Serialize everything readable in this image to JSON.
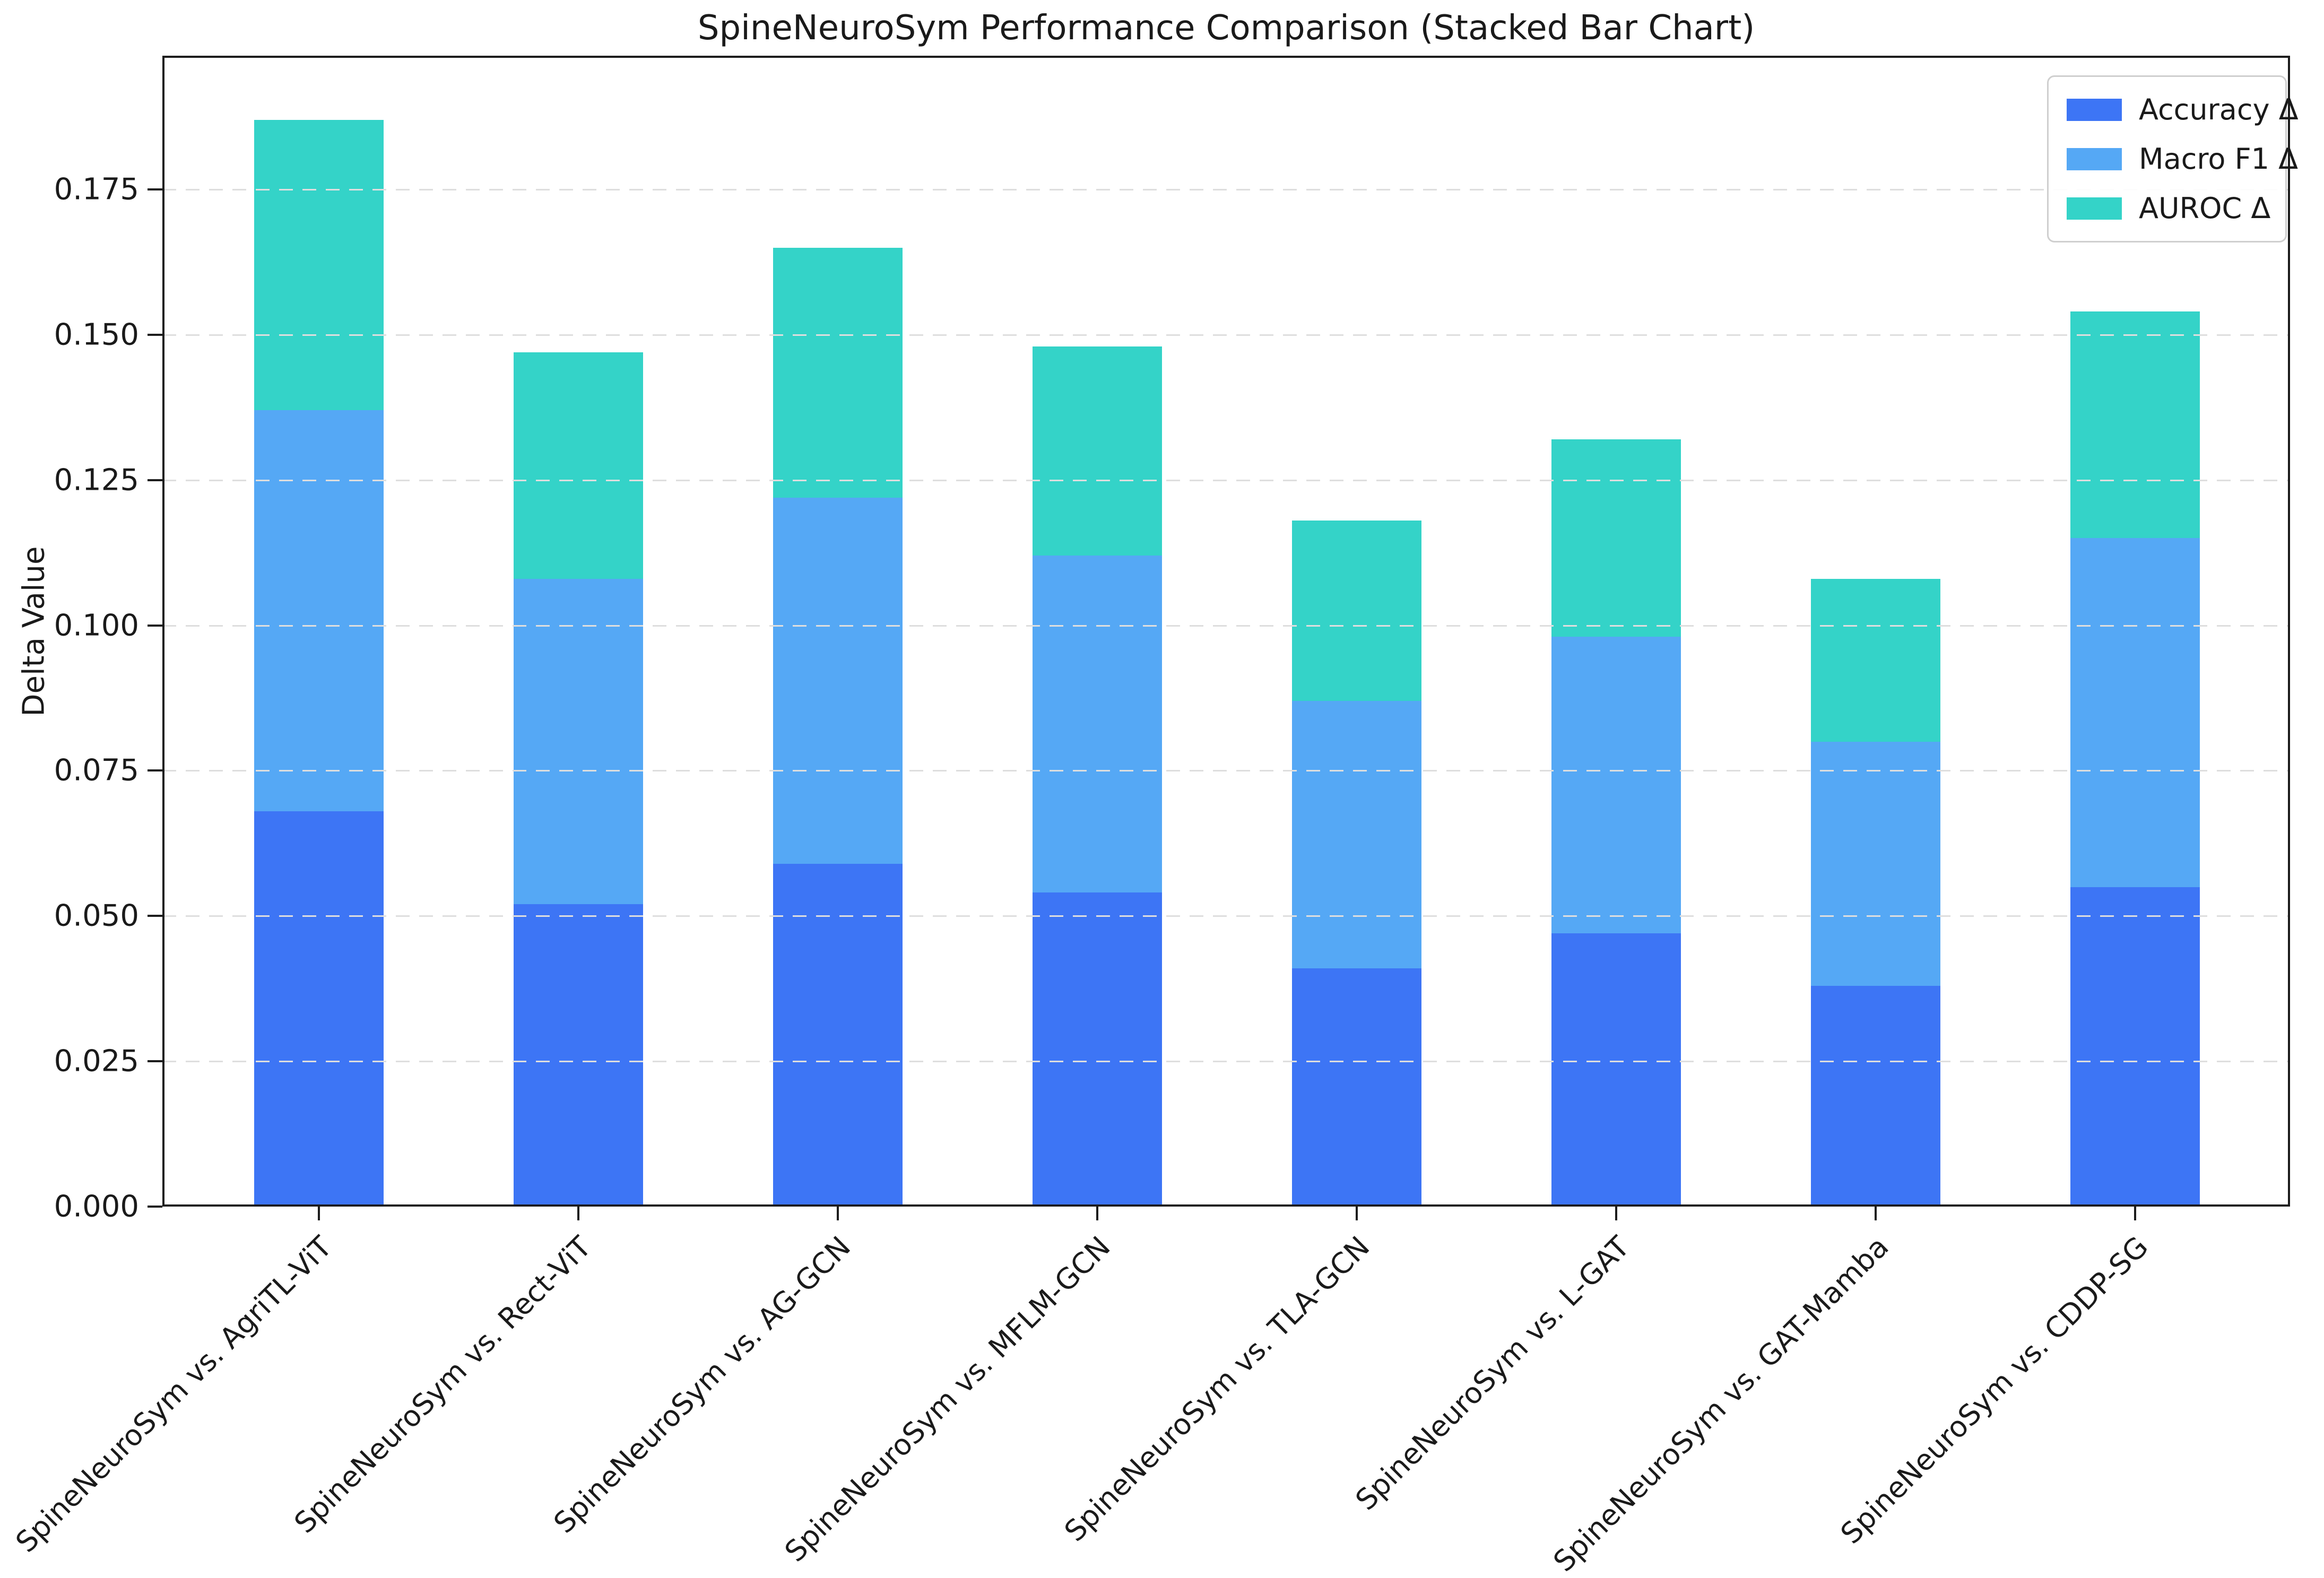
{
  "chart_data": {
    "type": "bar",
    "stacked": true,
    "title": "SpineNeuroSym Performance Comparison (Stacked Bar Chart)",
    "xlabel": "",
    "ylabel": "Delta Value",
    "categories": [
      "SpineNeuroSym vs. AgriTL-ViT",
      "SpineNeuroSym vs. Rect-ViT",
      "SpineNeuroSym vs. AG-GCN",
      "SpineNeuroSym vs. MFLM-GCN",
      "SpineNeuroSym vs. TLA-GCN",
      "SpineNeuroSym vs. L-GAT",
      "SpineNeuroSym vs. GAT-Mamba",
      "SpineNeuroSym vs. CDDP-SG"
    ],
    "series": [
      {
        "name": "Accuracy Δ",
        "color": "#3d75f5",
        "values": [
          0.068,
          0.052,
          0.059,
          0.054,
          0.041,
          0.047,
          0.038,
          0.055
        ]
      },
      {
        "name": "Macro F1 Δ",
        "color": "#55a8f5",
        "values": [
          0.069,
          0.056,
          0.063,
          0.058,
          0.046,
          0.051,
          0.042,
          0.06
        ]
      },
      {
        "name": "AUROC Δ",
        "color": "#34d3c8",
        "values": [
          0.05,
          0.039,
          0.043,
          0.036,
          0.031,
          0.034,
          0.028,
          0.039
        ]
      }
    ],
    "ylim": [
      0,
      0.198
    ],
    "yticks": [
      0.0,
      0.025,
      0.05,
      0.075,
      0.1,
      0.125,
      0.15,
      0.175
    ],
    "ytick_format_decimals": 3,
    "grid": "horizontal-dashed",
    "legend_position": "upper-right",
    "x_tick_label_rotation_deg": 45
  },
  "colors": {
    "axis": "#1c1c1c",
    "gridline": "#dedede",
    "legend_border": "#cfcfcf",
    "background": "#ffffff"
  }
}
